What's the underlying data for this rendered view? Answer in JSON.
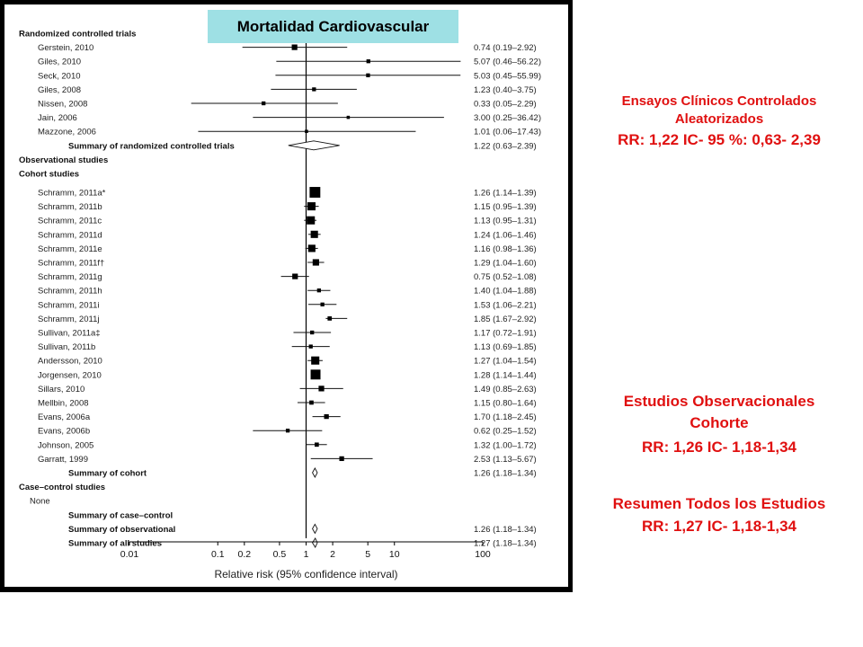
{
  "title_banner": "Mortalidad Cardiovascular",
  "annotations": {
    "rct": {
      "line1": "Ensayos Clínicos Controlados",
      "line2": "Aleatorizados",
      "line3": "RR: 1,22 IC- 95 %: 0,63- 2,39"
    },
    "obs": {
      "line1": "Estudios Observacionales",
      "line2": "Cohorte",
      "line3": "RR: 1,26 IC- 1,18-1,34"
    },
    "all": {
      "line1": "Resumen Todos los Estudios",
      "line2": "RR: 1,27 IC- 1,18-1,34"
    }
  },
  "chart_data": {
    "type": "forest",
    "xlabel": "Relative risk (95% confidence interval)",
    "xscale": "log",
    "xlim": [
      0.01,
      100
    ],
    "xticks": [
      {
        "value": 0.01,
        "label": "0.01"
      },
      {
        "value": 0.1,
        "label": "0.1"
      },
      {
        "value": 0.2,
        "label": "0.2"
      },
      {
        "value": 0.5,
        "label": "0.5"
      },
      {
        "value": 1,
        "label": "1"
      },
      {
        "value": 2,
        "label": "2"
      },
      {
        "value": 5,
        "label": "5"
      },
      {
        "value": 10,
        "label": "10"
      },
      {
        "value": 100,
        "label": "100"
      }
    ],
    "rows": [
      {
        "kind": "header",
        "label": "Randomized controlled trials"
      },
      {
        "kind": "study",
        "label": "Gerstein, 2010",
        "rr": 0.74,
        "lo": 0.19,
        "hi": 2.92,
        "w": 2,
        "text": "0.74 (0.19–2.92)"
      },
      {
        "kind": "study",
        "label": "Giles, 2010",
        "rr": 5.07,
        "lo": 0.46,
        "hi": 56.22,
        "w": 1,
        "text": "5.07 (0.46–56.22)"
      },
      {
        "kind": "study",
        "label": "Seck, 2010",
        "rr": 5.03,
        "lo": 0.45,
        "hi": 55.99,
        "w": 1,
        "text": "5.03 (0.45–55.99)"
      },
      {
        "kind": "study",
        "label": "Giles, 2008",
        "rr": 1.23,
        "lo": 0.4,
        "hi": 3.75,
        "w": 1,
        "text": "1.23 (0.40–3.75)"
      },
      {
        "kind": "study",
        "label": "Nissen, 2008",
        "rr": 0.33,
        "lo": 0.05,
        "hi": 2.29,
        "w": 1,
        "text": "0.33 (0.05–2.29)"
      },
      {
        "kind": "study",
        "label": "Jain, 2006",
        "rr": 3.0,
        "lo": 0.25,
        "hi": 36.42,
        "w": 0.6,
        "text": "3.00 (0.25–36.42)"
      },
      {
        "kind": "study",
        "label": "Mazzone, 2006",
        "rr": 1.01,
        "lo": 0.06,
        "hi": 17.43,
        "w": 0.6,
        "text": "1.01 (0.06–17.43)"
      },
      {
        "kind": "summary",
        "label": "Summary of randomized controlled trials",
        "rr": 1.22,
        "lo": 0.63,
        "hi": 2.39,
        "text": "1.22 (0.63–2.39)"
      },
      {
        "kind": "header",
        "label": "Observational studies"
      },
      {
        "kind": "header",
        "label": "Cohort studies"
      },
      {
        "kind": "study",
        "label": "Schramm, 2011a*",
        "rr": 1.26,
        "lo": 1.14,
        "hi": 1.39,
        "w": 5,
        "text": "1.26 (1.14–1.39)"
      },
      {
        "kind": "study",
        "label": "Schramm, 2011b",
        "rr": 1.15,
        "lo": 0.95,
        "hi": 1.39,
        "w": 3.5,
        "text": "1.15 (0.95–1.39)"
      },
      {
        "kind": "study",
        "label": "Schramm, 2011c",
        "rr": 1.13,
        "lo": 0.95,
        "hi": 1.31,
        "w": 3.5,
        "text": "1.13 (0.95–1.31)"
      },
      {
        "kind": "study",
        "label": "Schramm, 2011d",
        "rr": 1.24,
        "lo": 1.06,
        "hi": 1.46,
        "w": 3,
        "text": "1.24 (1.06–1.46)"
      },
      {
        "kind": "study",
        "label": "Schramm, 2011e",
        "rr": 1.16,
        "lo": 0.98,
        "hi": 1.36,
        "w": 3,
        "text": "1.16 (0.98–1.36)"
      },
      {
        "kind": "study",
        "label": "Schramm, 2011f†",
        "rr": 1.29,
        "lo": 1.04,
        "hi": 1.6,
        "w": 2.5,
        "text": "1.29 (1.04–1.60)"
      },
      {
        "kind": "study",
        "label": "Schramm, 2011g",
        "rr": 0.75,
        "lo": 0.52,
        "hi": 1.08,
        "w": 2,
        "text": "0.75 (0.52–1.08)"
      },
      {
        "kind": "study",
        "label": "Schramm, 2011h",
        "rr": 1.4,
        "lo": 1.04,
        "hi": 1.88,
        "w": 1,
        "text": "1.40 (1.04–1.88)"
      },
      {
        "kind": "study",
        "label": "Schramm, 2011i",
        "rr": 1.53,
        "lo": 1.06,
        "hi": 2.21,
        "w": 1,
        "text": "1.53 (1.06–2.21)"
      },
      {
        "kind": "study",
        "label": "Schramm, 2011j",
        "rr": 1.85,
        "lo": 1.67,
        "hi": 2.92,
        "w": 1.2,
        "text": "1.85 (1.67–2.92)"
      },
      {
        "kind": "study",
        "label": "Sullivan, 2011a‡",
        "rr": 1.17,
        "lo": 0.72,
        "hi": 1.91,
        "w": 1,
        "text": "1.17 (0.72–1.91)"
      },
      {
        "kind": "study",
        "label": "Sullivan, 2011b",
        "rr": 1.13,
        "lo": 0.69,
        "hi": 1.85,
        "w": 1,
        "text": "1.13 (0.69–1.85)"
      },
      {
        "kind": "study",
        "label": "Andersson, 2010",
        "rr": 1.27,
        "lo": 1.04,
        "hi": 1.54,
        "w": 3.5,
        "text": "1.27 (1.04–1.54)"
      },
      {
        "kind": "study",
        "label": "Jorgensen, 2010",
        "rr": 1.28,
        "lo": 1.14,
        "hi": 1.44,
        "w": 4.5,
        "text": "1.28 (1.14–1.44)"
      },
      {
        "kind": "study",
        "label": "Sillars, 2010",
        "rr": 1.49,
        "lo": 0.85,
        "hi": 2.63,
        "w": 2,
        "text": "1.49 (0.85–2.63)"
      },
      {
        "kind": "study",
        "label": "Mellbin, 2008",
        "rr": 1.15,
        "lo": 0.8,
        "hi": 1.64,
        "w": 1.2,
        "text": "1.15 (0.80–1.64)"
      },
      {
        "kind": "study",
        "label": "Evans, 2006a",
        "rr": 1.7,
        "lo": 1.18,
        "hi": 2.45,
        "w": 1.5,
        "text": "1.70 (1.18–2.45)"
      },
      {
        "kind": "study",
        "label": "Evans, 2006b",
        "rr": 0.62,
        "lo": 0.25,
        "hi": 1.52,
        "w": 1,
        "text": "0.62 (0.25–1.52)"
      },
      {
        "kind": "study",
        "label": "Johnson, 2005",
        "rr": 1.32,
        "lo": 1.0,
        "hi": 1.72,
        "w": 1.2,
        "text": "1.32 (1.00–1.72)"
      },
      {
        "kind": "study",
        "label": "Garratt, 1999",
        "rr": 2.53,
        "lo": 1.13,
        "hi": 5.67,
        "w": 1.5,
        "text": "2.53 (1.13–5.67)"
      },
      {
        "kind": "summary",
        "label": "Summary of cohort",
        "rr": 1.26,
        "lo": 1.18,
        "hi": 1.34,
        "text": "1.26 (1.18–1.34)"
      },
      {
        "kind": "header",
        "label": "Case–control studies"
      },
      {
        "kind": "plain",
        "label": "None"
      },
      {
        "kind": "summary-empty",
        "label": "Summary of case–control"
      },
      {
        "kind": "summary",
        "label": "Summary of observational",
        "rr": 1.26,
        "lo": 1.18,
        "hi": 1.34,
        "text": "1.26 (1.18–1.34)"
      },
      {
        "kind": "summary",
        "label": "Summary of all studies",
        "rr": 1.27,
        "lo": 1.18,
        "hi": 1.34,
        "text": "1.27 (1.18–1.34)"
      }
    ]
  }
}
